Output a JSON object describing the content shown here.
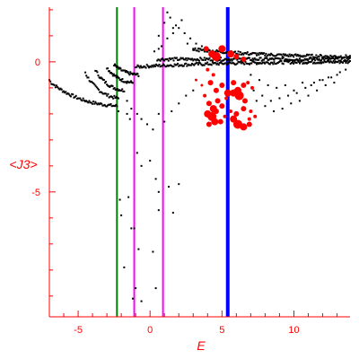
{
  "chart_data": {
    "type": "scatter",
    "title": "",
    "xlabel": "E",
    "ylabel": "<J3>",
    "xlim": [
      -7.0,
      13.9
    ],
    "ylim": [
      -9.8,
      2.1
    ],
    "x_ticks": [
      -5,
      0,
      5,
      10
    ],
    "x_tick_labels": [
      "-5",
      "0",
      "5",
      "10"
    ],
    "y_ticks": [
      0,
      -5
    ],
    "y_tick_labels": [
      "0",
      "-5"
    ],
    "colors": {
      "axis": "#ff0000",
      "points": "#000000",
      "highlight": "#ff0000",
      "green_line": "#008000",
      "magenta_line": "#ff00ff",
      "blue_line": "#0000ff"
    },
    "vertical_lines": [
      {
        "x": -2.3,
        "color": "#008000"
      },
      {
        "x": -1.1,
        "color": "#ff00ff"
      },
      {
        "x": 0.9,
        "color": "#ff00ff"
      },
      {
        "x": 5.4,
        "color": "#0000ff"
      }
    ],
    "black_branches": [
      {
        "x_start": -7.0,
        "y_start": -0.7,
        "x_end": -2.3,
        "y_end": -1.7
      },
      {
        "x_start": -4.5,
        "y_start": -0.4,
        "x_end": -2.2,
        "y_end": -1.4
      },
      {
        "x_start": -3.8,
        "y_start": -0.3,
        "x_end": -1.8,
        "y_end": -1.1
      },
      {
        "x_start": -3.0,
        "y_start": -0.2,
        "x_end": -1.2,
        "y_end": -0.8
      },
      {
        "x_start": -2.5,
        "y_start": -0.1,
        "x_end": -0.8,
        "y_end": -0.5
      },
      {
        "x_start": -1.0,
        "y_start": -0.2,
        "x_end": 13.9,
        "y_end": 0.0
      },
      {
        "x_start": 0.5,
        "y_start": 0.1,
        "x_end": 13.9,
        "y_end": 0.1
      },
      {
        "x_start": 3.0,
        "y_start": 0.5,
        "x_end": 13.9,
        "y_end": 0.2
      }
    ],
    "black_points": [
      [
        -0.9,
        -2.0
      ],
      [
        -0.6,
        -2.2
      ],
      [
        -0.2,
        -2.4
      ],
      [
        0.2,
        -2.6
      ],
      [
        0.6,
        -2.0
      ],
      [
        1.0,
        -2.3
      ],
      [
        1.5,
        -1.9
      ],
      [
        2.0,
        -1.6
      ],
      [
        2.5,
        -1.3
      ],
      [
        3.0,
        -1.1
      ],
      [
        -1.6,
        -1.5
      ],
      [
        -1.3,
        -1.8
      ],
      [
        -0.9,
        -3.5
      ],
      [
        -0.6,
        -4.0
      ],
      [
        0.0,
        -3.8
      ],
      [
        0.4,
        -4.5
      ],
      [
        0.6,
        -5.0
      ],
      [
        1.3,
        -4.8
      ],
      [
        2.0,
        -4.7
      ],
      [
        1.6,
        -5.8
      ],
      [
        -2.1,
        -5.3
      ],
      [
        -2.0,
        -5.9
      ],
      [
        -1.5,
        -5.2
      ],
      [
        -1.3,
        -6.4
      ],
      [
        -1.1,
        -6.4
      ],
      [
        -0.8,
        -7.2
      ],
      [
        0.2,
        -7.3
      ],
      [
        0.6,
        -5.7
      ],
      [
        -1.0,
        -8.7
      ],
      [
        -1.2,
        -9.1
      ],
      [
        -0.6,
        -9.2
      ],
      [
        -1.8,
        -7.9
      ],
      [
        0.4,
        -8.7
      ],
      [
        -2.2,
        -1.9
      ],
      [
        -1.6,
        -2.0
      ],
      [
        -1.4,
        -2.2
      ],
      [
        7.0,
        -0.5
      ],
      [
        7.6,
        -0.7
      ],
      [
        8.2,
        -0.9
      ],
      [
        8.8,
        -1.0
      ],
      [
        9.4,
        -0.9
      ],
      [
        10.0,
        -1.1
      ],
      [
        10.6,
        -0.8
      ],
      [
        11.2,
        -0.9
      ],
      [
        11.8,
        -0.7
      ],
      [
        12.4,
        -0.6
      ],
      [
        13.0,
        -0.5
      ],
      [
        13.6,
        -0.3
      ],
      [
        7.2,
        -1.1
      ],
      [
        7.8,
        -1.3
      ],
      [
        8.4,
        -1.5
      ],
      [
        9.0,
        -1.4
      ],
      [
        9.6,
        -1.3
      ],
      [
        10.2,
        -1.2
      ],
      [
        10.8,
        -1.0
      ],
      [
        11.4,
        -0.8
      ],
      [
        12.0,
        -0.7
      ],
      [
        12.6,
        -0.6
      ],
      [
        13.2,
        -0.4
      ],
      [
        7.4,
        -1.5
      ],
      [
        8.0,
        -1.7
      ],
      [
        8.6,
        -1.9
      ],
      [
        9.2,
        -1.8
      ],
      [
        9.8,
        -1.6
      ],
      [
        10.4,
        -1.5
      ],
      [
        11.0,
        -1.3
      ],
      [
        11.6,
        -1.1
      ],
      [
        12.2,
        -0.9
      ],
      [
        12.8,
        -0.8
      ],
      [
        0.8,
        0.6
      ],
      [
        1.2,
        0.9
      ],
      [
        1.6,
        1.1
      ],
      [
        2.0,
        1.3
      ],
      [
        2.4,
        1.1
      ],
      [
        2.8,
        0.9
      ],
      [
        1.0,
        1.5
      ],
      [
        1.4,
        1.7
      ],
      [
        1.8,
        1.4
      ],
      [
        2.2,
        1.6
      ],
      [
        1.2,
        1.9
      ],
      [
        1.6,
        1.3
      ],
      [
        0.6,
        1.0
      ],
      [
        3.2,
        0.7
      ],
      [
        3.6,
        0.6
      ],
      [
        0.3,
        0.4
      ],
      [
        0.6,
        0.5
      ],
      [
        2.6,
        0.7
      ],
      [
        3.0,
        0.5
      ],
      [
        3.4,
        0.4
      ],
      [
        4.0,
        0.4
      ],
      [
        4.5,
        0.3
      ]
    ],
    "red_points": [
      [
        3.9,
        0.5,
        3
      ],
      [
        4.3,
        0.3,
        4
      ],
      [
        4.6,
        0.2,
        5
      ],
      [
        5.0,
        0.5,
        4
      ],
      [
        5.6,
        0.3,
        4
      ],
      [
        6.0,
        0.2,
        3
      ],
      [
        6.5,
        0.1,
        3
      ],
      [
        4.0,
        -0.3,
        2
      ],
      [
        4.4,
        -0.5,
        2
      ],
      [
        3.2,
        -0.7,
        1.5
      ],
      [
        3.6,
        -0.9,
        1.5
      ],
      [
        4.2,
        -0.8,
        3
      ],
      [
        4.6,
        -1.1,
        3
      ],
      [
        5.0,
        -0.9,
        3
      ],
      [
        5.4,
        -1.2,
        4
      ],
      [
        5.8,
        -0.8,
        3
      ],
      [
        6.1,
        -1.1,
        4
      ],
      [
        6.5,
        -0.9,
        3
      ],
      [
        6.8,
        -0.8,
        2
      ],
      [
        7.1,
        -1.0,
        2
      ],
      [
        3.8,
        -1.3,
        2
      ],
      [
        4.1,
        -1.6,
        3
      ],
      [
        4.4,
        -1.8,
        4
      ],
      [
        4.7,
        -1.5,
        3
      ],
      [
        5.0,
        -1.7,
        3
      ],
      [
        5.3,
        -1.4,
        2
      ],
      [
        5.8,
        -1.2,
        4
      ],
      [
        6.2,
        -1.3,
        5
      ],
      [
        6.6,
        -1.5,
        3
      ],
      [
        7.0,
        -1.9,
        2
      ],
      [
        4.0,
        -2.0,
        4
      ],
      [
        4.3,
        -2.1,
        5
      ],
      [
        4.6,
        -1.9,
        3
      ],
      [
        4.9,
        -2.3,
        3
      ],
      [
        5.2,
        -2.1,
        2
      ],
      [
        5.6,
        -1.9,
        2
      ],
      [
        6.0,
        -2.0,
        3
      ],
      [
        6.5,
        -1.8,
        3
      ],
      [
        6.9,
        -2.2,
        2
      ],
      [
        4.1,
        -2.4,
        3
      ],
      [
        4.5,
        -2.3,
        4
      ],
      [
        5.8,
        -2.2,
        4
      ],
      [
        6.1,
        -2.4,
        5
      ],
      [
        6.5,
        -2.5,
        4
      ],
      [
        6.9,
        -2.4,
        3
      ],
      [
        7.3,
        -2.1,
        2
      ]
    ]
  }
}
